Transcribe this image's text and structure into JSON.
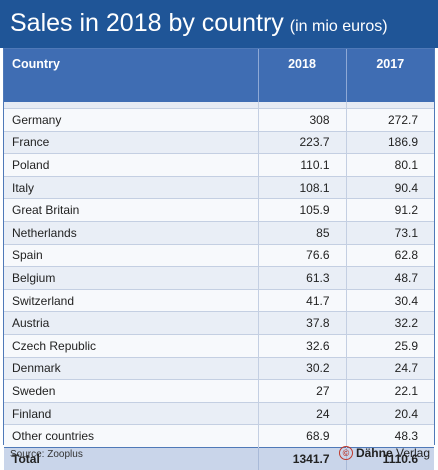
{
  "chart_data": {
    "type": "table",
    "title": "Sales in 2018 by country",
    "subtitle": "(in mio euros)",
    "columns": [
      "Country",
      "2018",
      "2017"
    ],
    "rows": [
      {
        "country": "Germany",
        "y2018": "308",
        "y2017": "272.7"
      },
      {
        "country": "France",
        "y2018": "223.7",
        "y2017": "186.9"
      },
      {
        "country": "Poland",
        "y2018": "110.1",
        "y2017": "80.1"
      },
      {
        "country": "Italy",
        "y2018": "108.1",
        "y2017": "90.4"
      },
      {
        "country": "Great Britain",
        "y2018": "105.9",
        "y2017": "91.2"
      },
      {
        "country": "Netherlands",
        "y2018": "85",
        "y2017": "73.1"
      },
      {
        "country": "Spain",
        "y2018": "76.6",
        "y2017": "62.8"
      },
      {
        "country": "Belgium",
        "y2018": "61.3",
        "y2017": "48.7"
      },
      {
        "country": "Switzerland",
        "y2018": "41.7",
        "y2017": "30.4"
      },
      {
        "country": "Austria",
        "y2018": "37.8",
        "y2017": "32.2"
      },
      {
        "country": "Czech Republic",
        "y2018": "32.6",
        "y2017": "25.9"
      },
      {
        "country": "Denmark",
        "y2018": "30.2",
        "y2017": "24.7"
      },
      {
        "country": "Sweden",
        "y2018": "27",
        "y2017": "22.1"
      },
      {
        "country": "Finland",
        "y2018": "24",
        "y2017": "20.4"
      },
      {
        "country": "Other countries",
        "y2018": "68.9",
        "y2017": "48.3"
      }
    ],
    "total": {
      "label": "Total",
      "y2018": "1341.7",
      "y2017": "1110.6"
    }
  },
  "footer": {
    "source": "Source: Zooplus",
    "copyright_symbol": "©",
    "publisher_bold": "Dähne",
    "publisher_rest": " Verlag"
  },
  "colors": {
    "title_bar": "#1f5597",
    "header": "#3f6db3",
    "row_alt": "#e9eef6",
    "total_row": "#c9d5ea"
  }
}
